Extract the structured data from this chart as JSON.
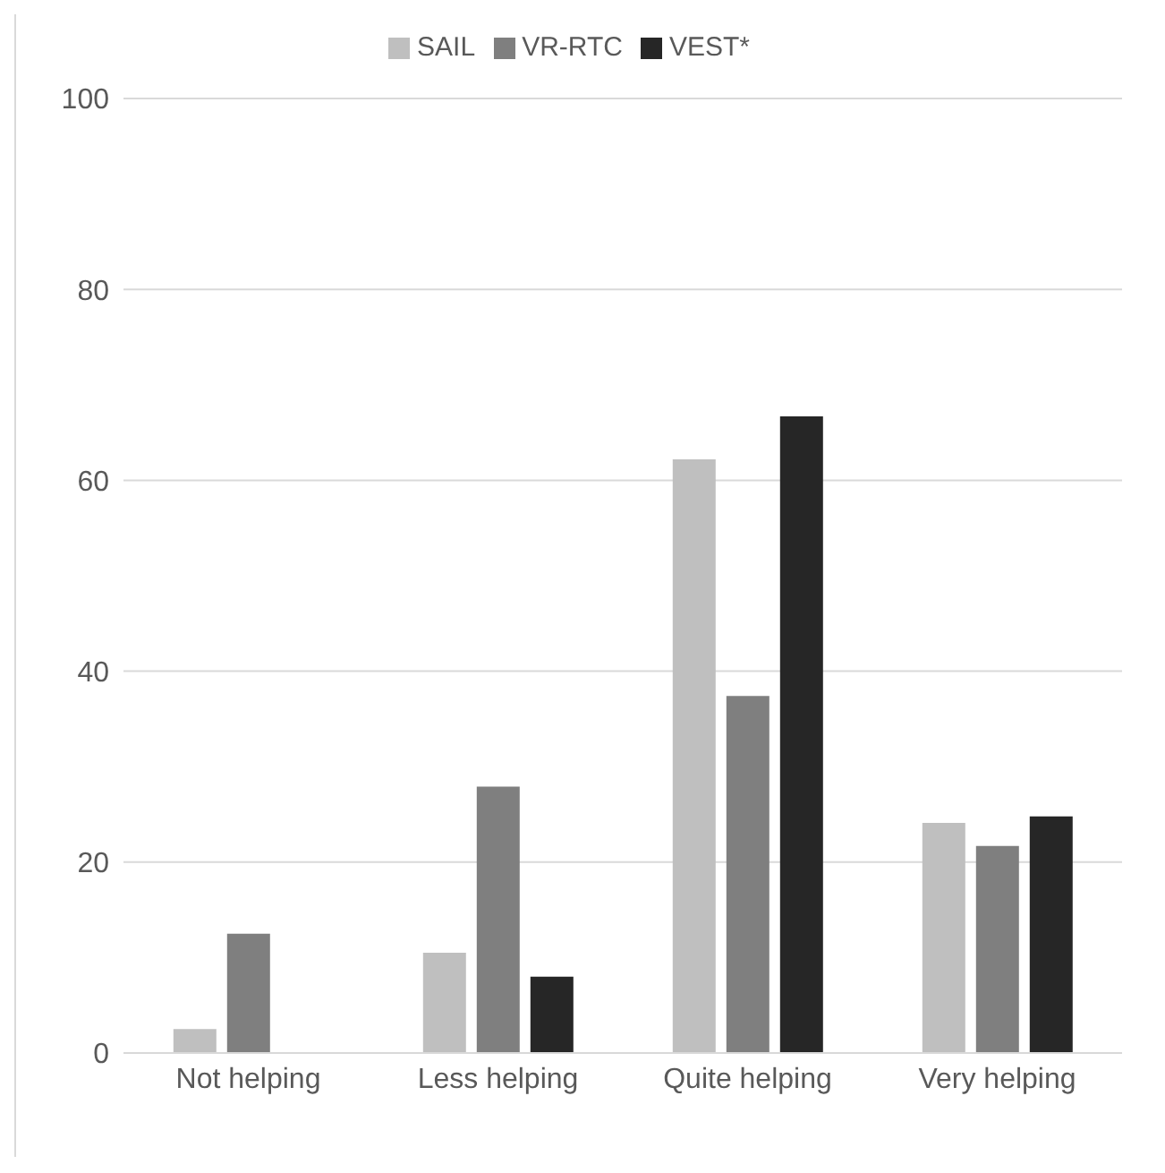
{
  "chart_data": {
    "type": "bar",
    "categories": [
      "Not helping",
      "Less helping",
      "Quite helping",
      "Very helping"
    ],
    "series": [
      {
        "name": "SAIL",
        "color": "#bfbfbf",
        "values": [
          2.5,
          10.5,
          62.2,
          24.1
        ]
      },
      {
        "name": "VR-RTC",
        "color": "#7f7f7f",
        "values": [
          12.5,
          27.9,
          37.4,
          21.7
        ]
      },
      {
        "name": "VEST*",
        "color": "#262626",
        "values": [
          0,
          8,
          66.7,
          24.8
        ]
      }
    ],
    "ylim": [
      0,
      100
    ],
    "yticks": [
      0,
      20,
      40,
      60,
      80,
      100
    ],
    "grid": "y",
    "legend": "top"
  }
}
